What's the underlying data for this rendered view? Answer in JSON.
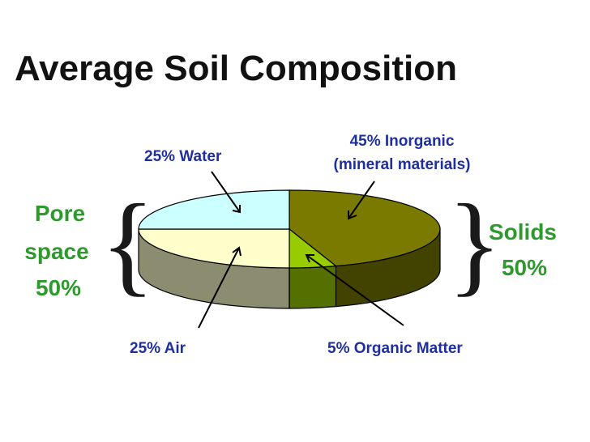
{
  "chart_data": {
    "type": "pie",
    "title": "Average Soil Composition",
    "slices": [
      {
        "label": "45% Inorganic (mineral materials)",
        "value": 45,
        "color": "#7a7a00"
      },
      {
        "label": "5% Organic Matter",
        "value": 5,
        "color": "#99cc00"
      },
      {
        "label": "25% Air",
        "value": 25,
        "color": "#ffffcc"
      },
      {
        "label": "25% Water",
        "value": 25,
        "color": "#ccffff"
      }
    ],
    "labels": {
      "water": "25% Water",
      "inorganic_line1": "45% Inorganic",
      "inorganic_line2": "(mineral materials)",
      "air": "25% Air",
      "organic": "5% Organic Matter"
    },
    "groups": {
      "pore_line1": "Pore",
      "pore_line2": "space",
      "pore_line3": "50%",
      "solids_line1": "Solids",
      "solids_line2": "50%"
    },
    "colors": {
      "label_text": "#1f2f9f",
      "group_text": "#2e9a2e",
      "title_text": "#111111"
    }
  }
}
